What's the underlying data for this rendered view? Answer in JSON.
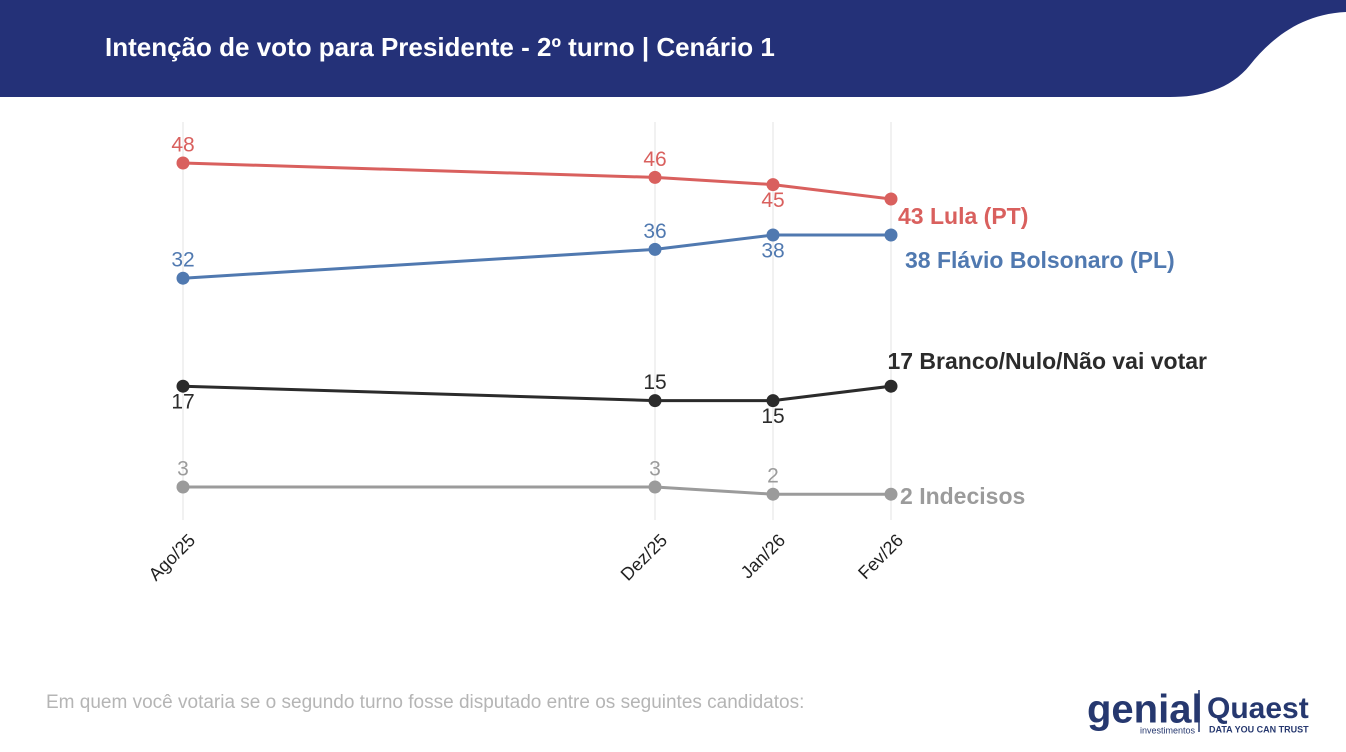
{
  "chart_data": {
    "type": "line",
    "title": "Intenção de voto para Presidente - 2º turno | Cenário 1",
    "note": "Em quem você votaria se o segundo turno fosse disputado entre os seguintes candidatos:",
    "x": [
      "2025-08",
      "2025-12",
      "2026-01",
      "2026-02"
    ],
    "xlim": [
      "2025-08",
      "2026-02"
    ],
    "xticks": [
      {
        "value": "2025-08",
        "label": "Ago/25"
      },
      {
        "value": "2025-12",
        "label": "Dez/25"
      },
      {
        "value": "2026-01",
        "label": "Jan/26"
      },
      {
        "value": "2026-02",
        "label": "Fev/26"
      }
    ],
    "ylim": [
      0,
      50
    ],
    "grid": true,
    "series": [
      {
        "name": "Lula (PT)",
        "color": "#d9605e",
        "values": [
          48,
          46,
          45,
          43
        ]
      },
      {
        "name": "Flávio Bolsonaro (PL)",
        "color": "#5079b0",
        "values": [
          32,
          36,
          38,
          38
        ]
      },
      {
        "name": "Branco/Nulo/Não vai votar",
        "color": "#2b2b2b",
        "values": [
          17,
          15,
          15,
          17
        ]
      },
      {
        "name": "Indecisos",
        "color": "#9b9b9b",
        "values": [
          3,
          3,
          2,
          2
        ]
      }
    ]
  },
  "logos": [
    "genial",
    "investimentos",
    "Quaest",
    "DATA YOU CAN TRUST"
  ]
}
